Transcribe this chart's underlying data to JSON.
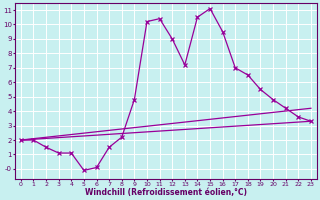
{
  "xlabel": "Windchill (Refroidissement éolien,°C)",
  "bg_color": "#c8f0f0",
  "line_color": "#990099",
  "xlim": [
    -0.5,
    23.5
  ],
  "ylim": [
    -0.7,
    11.5
  ],
  "xticks": [
    0,
    1,
    2,
    3,
    4,
    5,
    6,
    7,
    8,
    9,
    10,
    11,
    12,
    13,
    14,
    15,
    16,
    17,
    18,
    19,
    20,
    21,
    22,
    23
  ],
  "yticks": [
    0,
    1,
    2,
    3,
    4,
    5,
    6,
    7,
    8,
    9,
    10,
    11
  ],
  "line1_x": [
    0,
    1,
    2,
    3,
    4,
    5,
    6,
    7,
    8,
    9,
    10,
    11,
    12,
    13,
    14,
    15,
    16,
    17,
    18,
    19,
    20,
    21,
    22,
    23
  ],
  "line1_y": [
    2.0,
    2.0,
    1.5,
    1.1,
    1.1,
    -0.1,
    0.1,
    1.5,
    2.2,
    4.8,
    10.2,
    10.4,
    9.0,
    7.2,
    10.5,
    11.1,
    9.5,
    7.0,
    6.5,
    5.5,
    4.8,
    4.2,
    3.6,
    3.3
  ],
  "line2_x": [
    0,
    23
  ],
  "line2_y": [
    2.0,
    3.3
  ],
  "line3_x": [
    0,
    23
  ],
  "line3_y": [
    2.0,
    4.2
  ],
  "grid_color": "#ffffff",
  "font_color": "#660066",
  "spine_color": "#660066"
}
